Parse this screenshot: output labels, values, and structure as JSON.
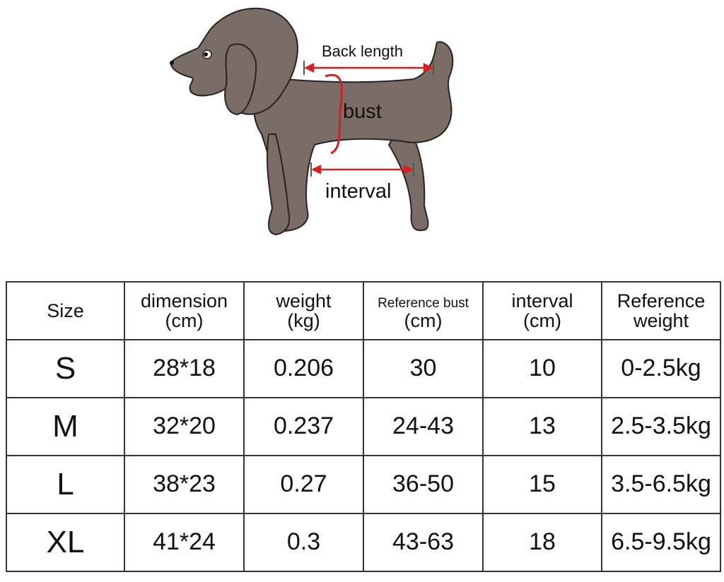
{
  "diagram": {
    "labels": {
      "back_length": "Back length",
      "bust": "bust",
      "interval": "interval"
    },
    "colors": {
      "dog": "#7a6c66",
      "outline": "#2a2220",
      "arrow": "#d42020"
    }
  },
  "table": {
    "headers": [
      {
        "line1": "Size",
        "line2": ""
      },
      {
        "line1": "dimension",
        "line2": "(cm)"
      },
      {
        "line1": "weight",
        "line2": "(kg)"
      },
      {
        "line1": "Reference bust",
        "line2": "(cm)"
      },
      {
        "line1": "interval",
        "line2": "(cm)"
      },
      {
        "line1": "Reference",
        "line2": "weight"
      }
    ],
    "rows": [
      [
        "S",
        "28*18",
        "0.206",
        "30",
        "10",
        "0-2.5kg"
      ],
      [
        "M",
        "32*20",
        "0.237",
        "24-43",
        "13",
        "2.5-3.5kg"
      ],
      [
        "L",
        "38*23",
        "0.27",
        "36-50",
        "15",
        "3.5-6.5kg"
      ],
      [
        "XL",
        "41*24",
        "0.3",
        "43-63",
        "18",
        "6.5-9.5kg"
      ]
    ]
  }
}
